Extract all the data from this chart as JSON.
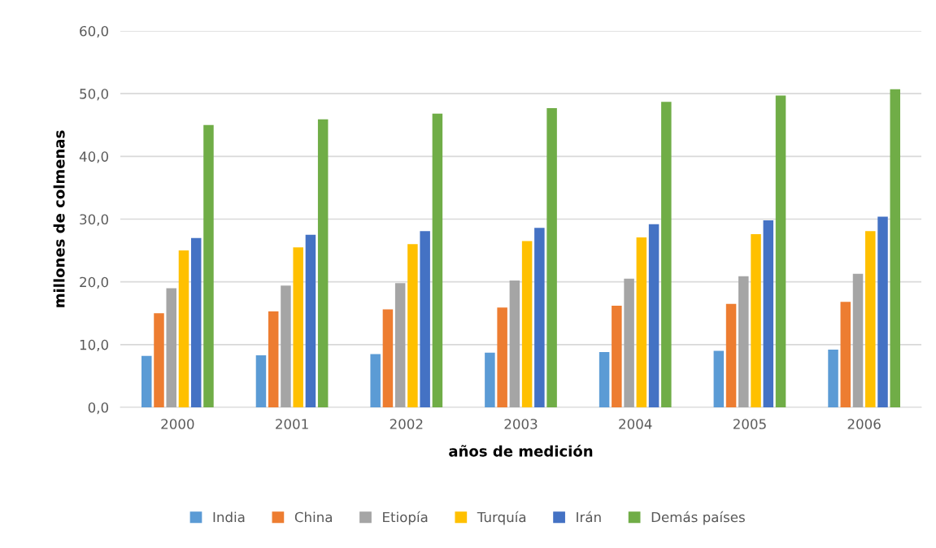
{
  "chart_data": {
    "type": "bar",
    "xlabel": "años de medición",
    "ylabel": "millones de colmenas",
    "categories": [
      "2000",
      "2001",
      "2002",
      "2003",
      "2004",
      "2005",
      "2006"
    ],
    "series": [
      {
        "name": "India",
        "color": "#5b9bd5",
        "values": [
          8.2,
          8.3,
          8.5,
          8.7,
          8.8,
          9.0,
          9.2
        ]
      },
      {
        "name": "China",
        "color": "#ed7d31",
        "values": [
          15.0,
          15.3,
          15.6,
          15.9,
          16.2,
          16.5,
          16.8
        ]
      },
      {
        "name": "Etiopía",
        "color": "#a5a5a5",
        "values": [
          19.0,
          19.4,
          19.8,
          20.2,
          20.5,
          20.9,
          21.3
        ]
      },
      {
        "name": "Turquía",
        "color": "#ffc000",
        "values": [
          25.0,
          25.5,
          26.0,
          26.5,
          27.1,
          27.6,
          28.1
        ]
      },
      {
        "name": "Irán",
        "color": "#4472c4",
        "values": [
          27.0,
          27.5,
          28.1,
          28.6,
          29.2,
          29.8,
          30.4
        ]
      },
      {
        "name": "Demás países",
        "color": "#70ad47",
        "values": [
          45.0,
          45.9,
          46.8,
          47.7,
          48.7,
          49.7,
          50.7
        ]
      }
    ],
    "ylim": [
      0,
      60
    ],
    "yticks": [
      {
        "value": 0,
        "label": "0,0"
      },
      {
        "value": 10,
        "label": "10,0"
      },
      {
        "value": 20,
        "label": "20,0"
      },
      {
        "value": 30,
        "label": "30,0"
      },
      {
        "value": 40,
        "label": "40,0"
      },
      {
        "value": 50,
        "label": "50,0"
      },
      {
        "value": 60,
        "label": "60,0"
      }
    ],
    "grid": "y",
    "legend": "bottom"
  }
}
